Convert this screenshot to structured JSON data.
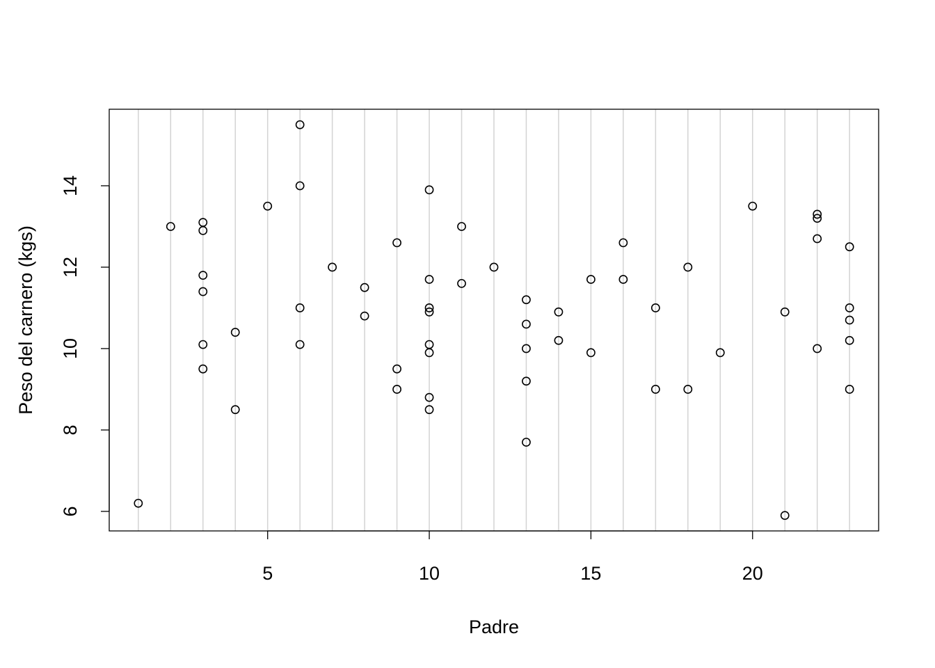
{
  "chart_data": {
    "type": "scatter",
    "title": "",
    "xlabel": "Padre",
    "ylabel": "Peso del carnero (kgs)",
    "xlim": [
      0.1,
      23.9
    ],
    "ylim": [
      5.52,
      15.88
    ],
    "xticks": [
      5,
      10,
      15,
      20
    ],
    "yticks": [
      6,
      8,
      10,
      12,
      14
    ],
    "grid": "vertical lines at each x from 1 to 23",
    "grid_color": "#d3d3d3",
    "point_color": "#000000",
    "marker": "open circle",
    "points": [
      [
        1,
        6.2
      ],
      [
        2,
        13.0
      ],
      [
        3,
        13.1
      ],
      [
        3,
        12.9
      ],
      [
        3,
        11.8
      ],
      [
        3,
        11.4
      ],
      [
        3,
        10.1
      ],
      [
        3,
        9.5
      ],
      [
        4,
        10.4
      ],
      [
        4,
        8.5
      ],
      [
        5,
        13.5
      ],
      [
        6,
        15.5
      ],
      [
        6,
        14.0
      ],
      [
        6,
        11.0
      ],
      [
        6,
        10.1
      ],
      [
        7,
        12.0
      ],
      [
        8,
        11.5
      ],
      [
        8,
        10.8
      ],
      [
        9,
        12.6
      ],
      [
        9,
        9.5
      ],
      [
        9,
        9.0
      ],
      [
        10,
        13.9
      ],
      [
        10,
        11.7
      ],
      [
        10,
        11.0
      ],
      [
        10,
        10.9
      ],
      [
        10,
        10.1
      ],
      [
        10,
        9.9
      ],
      [
        10,
        8.8
      ],
      [
        10,
        8.5
      ],
      [
        11,
        13.0
      ],
      [
        11,
        11.6
      ],
      [
        12,
        12.0
      ],
      [
        13,
        11.2
      ],
      [
        13,
        10.6
      ],
      [
        13,
        10.0
      ],
      [
        13,
        9.2
      ],
      [
        13,
        7.7
      ],
      [
        14,
        10.9
      ],
      [
        14,
        10.2
      ],
      [
        15,
        11.7
      ],
      [
        15,
        9.9
      ],
      [
        16,
        12.6
      ],
      [
        16,
        11.7
      ],
      [
        17,
        11.0
      ],
      [
        17,
        9.0
      ],
      [
        18,
        12.0
      ],
      [
        18,
        9.0
      ],
      [
        19,
        9.9
      ],
      [
        20,
        13.5
      ],
      [
        21,
        10.9
      ],
      [
        21,
        5.9
      ],
      [
        22,
        13.3
      ],
      [
        22,
        13.2
      ],
      [
        22,
        12.7
      ],
      [
        22,
        10.0
      ],
      [
        23,
        12.5
      ],
      [
        23,
        11.0
      ],
      [
        23,
        10.7
      ],
      [
        23,
        10.2
      ],
      [
        23,
        9.0
      ]
    ]
  }
}
